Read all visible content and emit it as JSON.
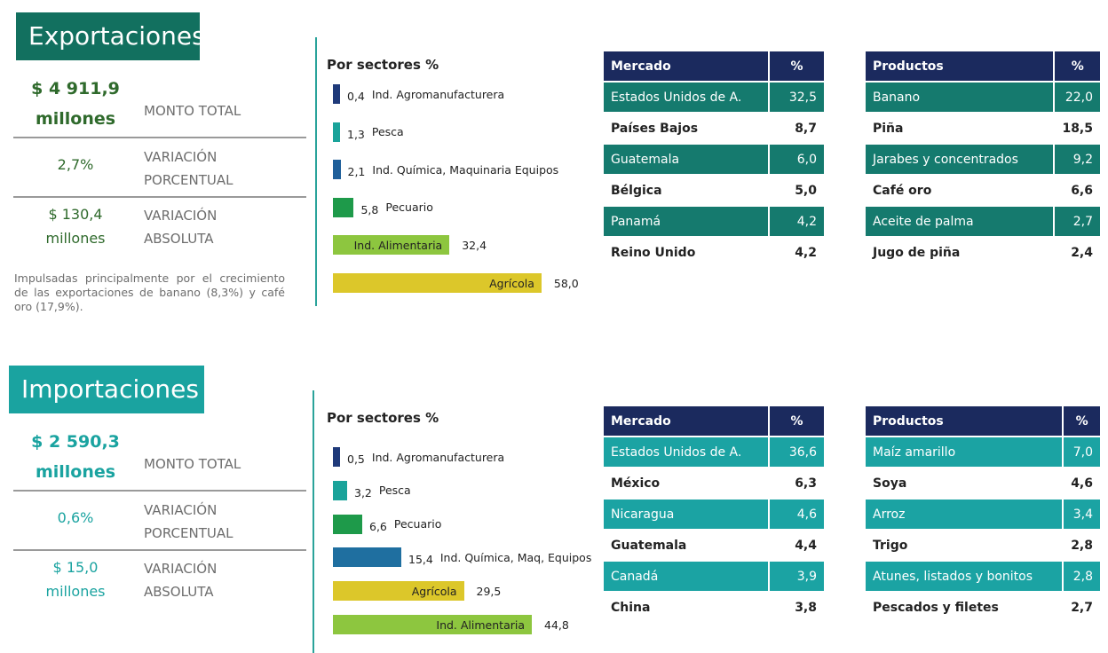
{
  "sections": [
    {
      "title": "Exportaciones",
      "total": {
        "amount": "$ 4 911,9",
        "unit": "millones",
        "label": "MONTO TOTAL"
      },
      "percent_change": {
        "value": "2,7%",
        "label": "VARIACIÓN PORCENTUAL"
      },
      "absolute_change": {
        "amount": "$ 130,4",
        "unit": "millones",
        "label": "VARIACIÓN ABSOLUTA"
      },
      "note": "Impulsadas principalmente por el crecimiento de las exportaciones de banano (8,3%) y café oro (17,9%).",
      "sectors": {
        "title": "Por sectores %",
        "categories": [
          "Ind. Agromanufacturera",
          "Pesca",
          "Ind. Química, Maquinaria Equipos",
          "Pecuario",
          "Ind. Alimentaria",
          "Agrícola"
        ],
        "values": [
          0.4,
          1.3,
          2.1,
          5.8,
          32.4,
          58.0
        ],
        "value_labels": [
          "0,4",
          "1,3",
          "2,1",
          "5,8",
          "32,4",
          "58,0"
        ],
        "colors": [
          "#1f3a7a",
          "#1aa39a",
          "#1f5f9a",
          "#1e9a4a",
          "#8dc63f",
          "#dcc72a"
        ]
      },
      "markets": {
        "header": [
          "Mercado",
          "%"
        ],
        "rows": [
          [
            "Estados Unidos de A.",
            "32,5"
          ],
          [
            "Países Bajos",
            "8,7"
          ],
          [
            "Guatemala",
            "6,0"
          ],
          [
            "Bélgica",
            "5,0"
          ],
          [
            "Panamá",
            "4,2"
          ],
          [
            "Reino Unido",
            "4,2"
          ]
        ]
      },
      "products": {
        "header": [
          "Productos",
          "%"
        ],
        "rows": [
          [
            "Banano",
            "22,0"
          ],
          [
            "Piña",
            "18,5"
          ],
          [
            "Jarabes y concentrados",
            "9,2"
          ],
          [
            "Café oro",
            "6,6"
          ],
          [
            "Aceite de palma",
            "2,7"
          ],
          [
            "Jugo de piña",
            "2,4"
          ]
        ]
      }
    },
    {
      "title": "Importaciones",
      "total": {
        "amount": "$ 2 590,3",
        "unit": "millones",
        "label": "MONTO TOTAL"
      },
      "percent_change": {
        "value": "0,6%",
        "label": "VARIACIÓN PORCENTUAL"
      },
      "absolute_change": {
        "amount": "$ 15,0",
        "unit": "millones",
        "label": "VARIACIÓN ABSOLUTA"
      },
      "sectors": {
        "title": "Por sectores %",
        "categories": [
          "Ind. Agromanufacturera",
          "Pesca",
          "Pecuario",
          "Ind. Química, Maq, Equipos",
          "Agrícola",
          "Ind. Alimentaria"
        ],
        "values": [
          0.5,
          3.2,
          6.6,
          15.4,
          29.5,
          44.8
        ],
        "value_labels": [
          "0,5",
          "3,2",
          "6,6",
          "15,4",
          "29,5",
          "44,8"
        ],
        "colors": [
          "#1f3a7a",
          "#1aa39a",
          "#1e9a4a",
          "#1f6fa0",
          "#dcc72a",
          "#8dc63f"
        ]
      },
      "markets": {
        "header": [
          "Mercado",
          "%"
        ],
        "rows": [
          [
            "Estados Unidos de A.",
            "36,6"
          ],
          [
            "México",
            "6,3"
          ],
          [
            "Nicaragua",
            "4,6"
          ],
          [
            "Guatemala",
            "4,4"
          ],
          [
            "Canadá",
            "3,9"
          ],
          [
            "China",
            "3,8"
          ]
        ]
      },
      "products": {
        "header": [
          "Productos",
          "%"
        ],
        "rows": [
          [
            "Maíz amarillo",
            "7,0"
          ],
          [
            "Soya",
            "4,6"
          ],
          [
            "Arroz",
            "3,4"
          ],
          [
            "Trigo",
            "2,8"
          ],
          [
            "Atunes, listados y bonitos",
            "2,8"
          ],
          [
            "Pescados y filetes",
            "2,7"
          ]
        ]
      }
    }
  ]
}
